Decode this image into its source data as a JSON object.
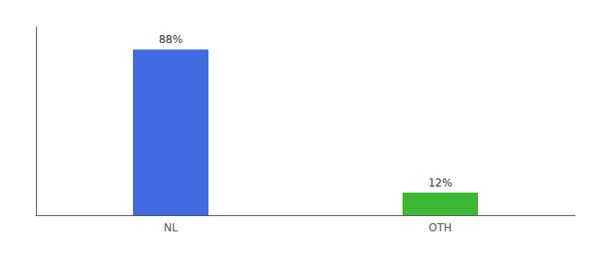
{
  "chart_data": {
    "type": "bar",
    "categories": [
      "NL",
      "OTH"
    ],
    "values": [
      88,
      12
    ],
    "value_labels": [
      "88%",
      "12%"
    ],
    "colors": [
      "#4169e1",
      "#3cb832"
    ],
    "ylim": [
      0,
      100
    ],
    "grid": false,
    "data_labels": true,
    "tick_labels": "x"
  }
}
